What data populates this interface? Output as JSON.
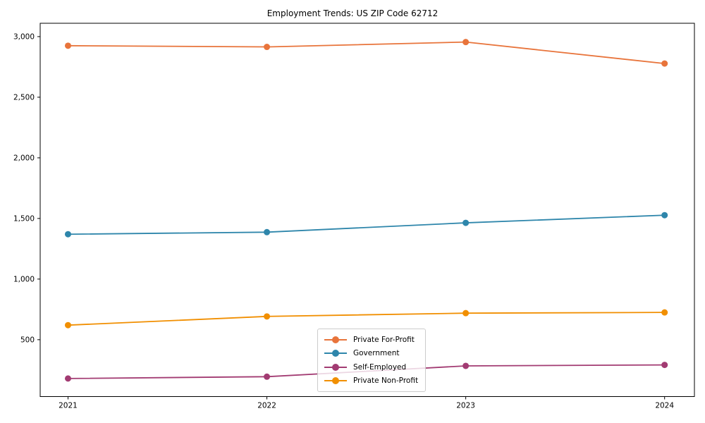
{
  "chart_data": {
    "type": "line",
    "title": "Employment Trends: US ZIP Code 62712",
    "x": [
      2021,
      2022,
      2023,
      2024
    ],
    "x_tick_labels": [
      "2021",
      "2022",
      "2023",
      "2024"
    ],
    "y_ticks": [
      500,
      1000,
      1500,
      2000,
      2500,
      3000
    ],
    "y_tick_labels": [
      "500",
      "1,000",
      "1,500",
      "2,000",
      "2,500",
      "3,000"
    ],
    "xlim": [
      2020.86,
      2024.15
    ],
    "ylim": [
      31,
      3110
    ],
    "xlabel": "",
    "ylabel": "",
    "grid": false,
    "legend_position": "lower center-right inside plot",
    "series": [
      {
        "name": "Private For-Profit",
        "color": "#E8743B",
        "values": [
          2925,
          2915,
          2955,
          2778
        ]
      },
      {
        "name": "Government",
        "color": "#2E86AB",
        "values": [
          1370,
          1387,
          1464,
          1527
        ]
      },
      {
        "name": "Self-Employed",
        "color": "#A23B72",
        "values": [
          180,
          195,
          284,
          292
        ]
      },
      {
        "name": "Private Non-Profit",
        "color": "#F18F01",
        "values": [
          620,
          692,
          719,
          725
        ]
      }
    ]
  },
  "layout_colors": {
    "axes_border": "#000000",
    "tick_text": "#000000",
    "background": "#ffffff"
  }
}
